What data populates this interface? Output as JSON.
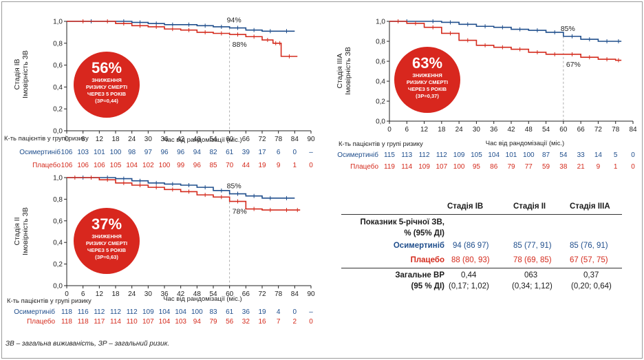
{
  "colors": {
    "osimertinib": "#1f4e8c",
    "placebo": "#d42a1c",
    "badge": "#d8271e",
    "axis": "#222222"
  },
  "panels": [
    {
      "id": "stage-ib",
      "ylabel_lines": [
        "Стадія IB",
        "Імовірність ЗВ"
      ],
      "xlabel": "Час від рандомізації (міс.)",
      "risk_header": "К-ть пацієнтів у групі ризику",
      "badge": {
        "percent": "56%",
        "lines": [
          "ЗНИЖЕННЯ",
          "РИЗИКУ СМЕРТІ",
          "ЧЕРЕЗ 5 РОКІВ",
          "(ЗР=0,44)"
        ]
      },
      "annotations": {
        "osimertinib": "94%",
        "placebo": "88%"
      },
      "risk": {
        "osimertinib": {
          "label": "Осимертиніб",
          "values": [
            "106",
            "103",
            "101",
            "100",
            "98",
            "97",
            "96",
            "96",
            "94",
            "82",
            "61",
            "39",
            "17",
            "6",
            "0",
            "–"
          ]
        },
        "placebo": {
          "label": "Плацебо",
          "values": [
            "106",
            "106",
            "106",
            "105",
            "104",
            "102",
            "100",
            "99",
            "96",
            "85",
            "70",
            "44",
            "19",
            "9",
            "1",
            "0"
          ]
        }
      }
    },
    {
      "id": "stage-ii",
      "ylabel_lines": [
        "Стадія II",
        "Імовірність ЗВ"
      ],
      "xlabel": "Час від рандомізації (міс.)",
      "risk_header": "К-ть пацієнтів у групі ризику",
      "badge": {
        "percent": "37%",
        "lines": [
          "ЗНИЖЕННЯ",
          "РИЗИКУ СМЕРТІ",
          "ЧЕРЕЗ 5 РОКІВ",
          "(ЗР=0,63)"
        ]
      },
      "annotations": {
        "osimertinib": "85%",
        "placebo": "78%"
      },
      "risk": {
        "osimertinib": {
          "label": "Осимертиніб",
          "values": [
            "118",
            "116",
            "112",
            "112",
            "112",
            "109",
            "104",
            "104",
            "100",
            "83",
            "61",
            "36",
            "19",
            "4",
            "0",
            "–"
          ]
        },
        "placebo": {
          "label": "Плацебо",
          "values": [
            "118",
            "118",
            "117",
            "114",
            "110",
            "107",
            "104",
            "103",
            "94",
            "79",
            "56",
            "32",
            "16",
            "7",
            "2",
            "0"
          ]
        }
      }
    },
    {
      "id": "stage-iiia",
      "ylabel_lines": [
        "Стадія IIIA",
        "Імовірність ЗВ"
      ],
      "xlabel": "Час від рандомізації (міс.)",
      "risk_header": "К-ть пацієнтів у групі ризику",
      "badge": {
        "percent": "63%",
        "lines": [
          "ЗНИЖЕННЯ",
          "РИЗИКУ СМЕРТІ",
          "ЧЕРЕЗ 5 РОКІВ",
          "(ЗР=0,37)"
        ]
      },
      "annotations": {
        "osimertinib": "85%",
        "placebo": "67%"
      },
      "risk": {
        "osimertinib": {
          "label": "Осимертиніб",
          "values": [
            "115",
            "113",
            "112",
            "112",
            "109",
            "105",
            "104",
            "101",
            "100",
            "87",
            "54",
            "33",
            "14",
            "5",
            "0"
          ]
        },
        "placebo": {
          "label": "Плацебо",
          "values": [
            "119",
            "114",
            "109",
            "107",
            "100",
            "95",
            "86",
            "79",
            "77",
            "59",
            "38",
            "21",
            "9",
            "1",
            "0"
          ]
        }
      }
    }
  ],
  "chart_data": [
    {
      "type": "line",
      "title": "Стадія IB",
      "xlabel": "Час від рандомізації (міс.)",
      "ylabel": "Імовірність ЗВ",
      "xlim": [
        0,
        90
      ],
      "ylim": [
        0,
        1.0
      ],
      "xticks": [
        0,
        6,
        12,
        18,
        24,
        30,
        36,
        42,
        48,
        54,
        60,
        66,
        72,
        78,
        84,
        90
      ],
      "yticks": [
        0.0,
        0.2,
        0.4,
        0.6,
        0.8,
        1.0
      ],
      "ytick_labels": [
        "0,0",
        "0,2",
        "0,4",
        "0,6",
        "0,8",
        "1,0"
      ],
      "series": [
        {
          "name": "Осимертиніб",
          "x": [
            0,
            18,
            24,
            30,
            36,
            42,
            48,
            54,
            60,
            66,
            72,
            78,
            84
          ],
          "values": [
            1.0,
            1.0,
            0.99,
            0.98,
            0.97,
            0.97,
            0.96,
            0.95,
            0.94,
            0.92,
            0.91,
            0.91,
            0.91
          ]
        },
        {
          "name": "Плацебо",
          "x": [
            0,
            12,
            18,
            24,
            30,
            36,
            42,
            48,
            54,
            60,
            66,
            72,
            76,
            78,
            79,
            85
          ],
          "values": [
            1.0,
            1.0,
            0.98,
            0.96,
            0.95,
            0.93,
            0.92,
            0.9,
            0.89,
            0.88,
            0.86,
            0.83,
            0.8,
            0.8,
            0.68,
            0.68
          ]
        }
      ]
    },
    {
      "type": "line",
      "title": "Стадія II",
      "xlabel": "Час від рандомізації (міс.)",
      "ylabel": "Імовірність ЗВ",
      "xlim": [
        0,
        90
      ],
      "ylim": [
        0,
        1.0
      ],
      "xticks": [
        0,
        6,
        12,
        18,
        24,
        30,
        36,
        42,
        48,
        54,
        60,
        66,
        72,
        78,
        84,
        90
      ],
      "yticks": [
        0.0,
        0.2,
        0.4,
        0.6,
        0.8,
        1.0
      ],
      "ytick_labels": [
        "0,0",
        "0,2",
        "0,4",
        "0,6",
        "0,8",
        "1,0"
      ],
      "series": [
        {
          "name": "Осимертиніб",
          "x": [
            0,
            12,
            18,
            24,
            30,
            36,
            42,
            48,
            54,
            60,
            66,
            72,
            78,
            84
          ],
          "values": [
            1.0,
            1.0,
            0.99,
            0.97,
            0.95,
            0.94,
            0.93,
            0.91,
            0.88,
            0.85,
            0.83,
            0.81,
            0.81,
            0.81
          ]
        },
        {
          "name": "Плацебо",
          "x": [
            0,
            6,
            12,
            18,
            24,
            30,
            36,
            42,
            48,
            54,
            60,
            66,
            72,
            78,
            84,
            86
          ],
          "values": [
            1.0,
            1.0,
            0.98,
            0.95,
            0.93,
            0.91,
            0.89,
            0.87,
            0.84,
            0.82,
            0.78,
            0.71,
            0.7,
            0.7,
            0.7,
            0.7
          ]
        }
      ]
    },
    {
      "type": "line",
      "title": "Стадія IIIA",
      "xlabel": "Час від рандомізації (міс.)",
      "ylabel": "Імовірність ЗВ",
      "xlim": [
        0,
        84
      ],
      "ylim": [
        0,
        1.0
      ],
      "xticks": [
        0,
        6,
        12,
        18,
        24,
        30,
        36,
        42,
        48,
        54,
        60,
        66,
        72,
        78,
        84
      ],
      "yticks": [
        0.0,
        0.2,
        0.4,
        0.6,
        0.8,
        1.0
      ],
      "ytick_labels": [
        "0,0",
        "0,2",
        "0,4",
        "0,6",
        "0,8",
        "1,0"
      ],
      "series": [
        {
          "name": "Осимертиніб",
          "x": [
            0,
            12,
            18,
            24,
            30,
            36,
            42,
            48,
            54,
            60,
            66,
            72,
            78,
            80
          ],
          "values": [
            1.0,
            1.0,
            0.99,
            0.97,
            0.95,
            0.94,
            0.92,
            0.91,
            0.89,
            0.85,
            0.82,
            0.8,
            0.8,
            0.8
          ]
        },
        {
          "name": "Плацебо",
          "x": [
            0,
            6,
            12,
            18,
            24,
            30,
            36,
            42,
            48,
            54,
            60,
            66,
            72,
            78,
            80
          ],
          "values": [
            1.0,
            0.98,
            0.94,
            0.88,
            0.81,
            0.76,
            0.74,
            0.72,
            0.69,
            0.67,
            0.67,
            0.64,
            0.62,
            0.61,
            0.61
          ]
        }
      ]
    }
  ],
  "table": {
    "headers": [
      "",
      "Стадія IB",
      "Стадія II",
      "Стадія IIIA"
    ],
    "rows": [
      {
        "label_lines": [
          "Показник 5-річної ЗВ,",
          "% (95% ДІ)"
        ],
        "values": [
          "",
          "",
          ""
        ]
      },
      {
        "label_lines": [
          "Осимертиніб"
        ],
        "values": [
          "94 (86 97)",
          "85 (77, 91)",
          "85 (76, 91)"
        ]
      },
      {
        "label_lines": [
          "Плацебо"
        ],
        "values": [
          "88 (80, 93)",
          "78 (69, 85)",
          "67 (57, 75)"
        ]
      },
      {
        "label_lines": [
          "Загальне ВР",
          "(95 % ДІ)"
        ],
        "values": [
          "0,44",
          "063",
          "0,37"
        ],
        "values2": [
          "(0,17; 1,02)",
          "(0,34; 1,12)",
          "(0,20; 0,64)"
        ]
      }
    ]
  },
  "footnote": "ЗВ – загальна виживаність, ЗР – загальний ризик."
}
